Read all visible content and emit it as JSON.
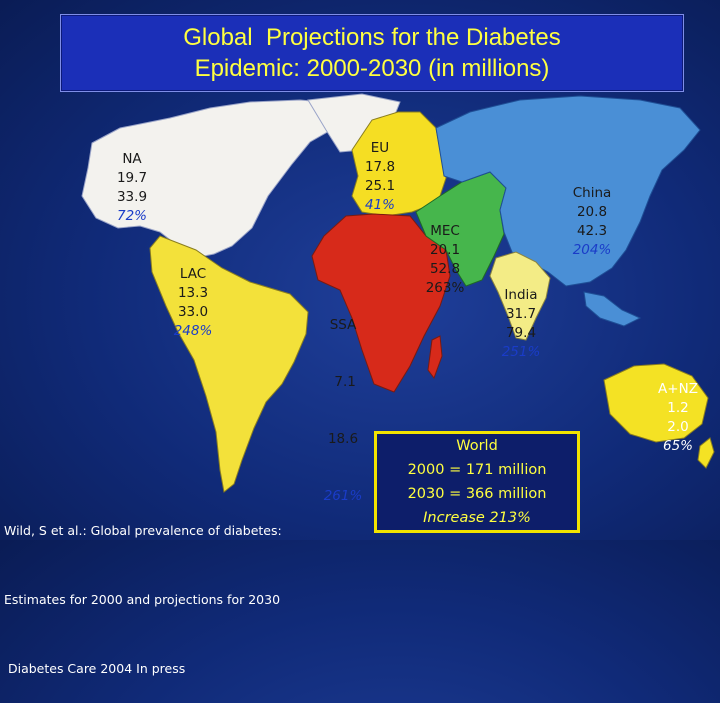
{
  "title": {
    "line1": "Global  Projections for the Diabetes",
    "line2": "Epidemic: 2000-2030 (in millions)"
  },
  "colors": {
    "north_america": "#f3f2ee",
    "latin_america": "#f3e13a",
    "europe": "#f5de23",
    "africa": "#d72a1a",
    "middle_east": "#46b64c",
    "asia": "#4a8fd6",
    "india": "#f3ec86",
    "oceania": "#f4e224",
    "ocean": "#102a78",
    "title_text": "#ffff40"
  },
  "regions": [
    {
      "id": "na",
      "name": "NA",
      "v2000": "19.7",
      "v2030": "33.9",
      "increase": "72%"
    },
    {
      "id": "eu",
      "name": "EU",
      "v2000": "17.8",
      "v2030": "25.1",
      "increase": "41%"
    },
    {
      "id": "china",
      "name": "China",
      "v2000": "20.8",
      "v2030": "42.3",
      "increase": "204%"
    },
    {
      "id": "mec",
      "name": "MEC",
      "v2000": "20.1",
      "v2030": "52.8",
      "increase": "263%"
    },
    {
      "id": "lac",
      "name": "LAC",
      "v2000": "13.3",
      "v2030": "33.0",
      "increase": "248%"
    },
    {
      "id": "ssa",
      "name": "SSA",
      "v2000": " 7.1",
      "v2030": "18.6",
      "increase": "261%"
    },
    {
      "id": "india",
      "name": "India",
      "v2000": "31.7",
      "v2030": "79.4",
      "increase": "251%"
    },
    {
      "id": "anz",
      "name": "A+NZ",
      "v2000": "1.2",
      "v2030": "2.0",
      "increase": "65%"
    }
  ],
  "world": {
    "label": "World",
    "line_2000": "2000 = 171 million",
    "line_2030": "2030 = 366 million",
    "increase": "Increase 213%"
  },
  "citation": {
    "line1": "Wild, S et al.: Global prevalence of diabetes:",
    "line2": "Estimates for 2000 and projections for 2030",
    "line3": " Diabetes Care 2004 In press"
  }
}
